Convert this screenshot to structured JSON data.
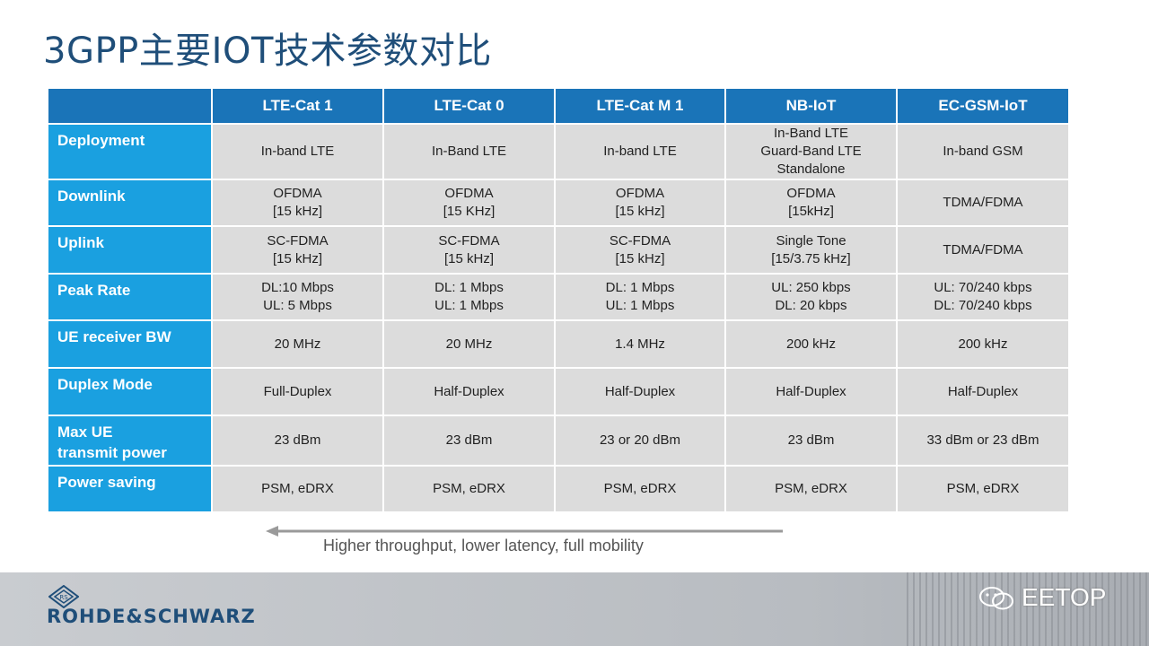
{
  "title": "3GPP主要IOT技术参数对比",
  "table": {
    "columns": [
      "LTE-Cat 1",
      "LTE-Cat 0",
      "LTE-Cat M 1",
      "NB-IoT",
      "EC-GSM-IoT"
    ],
    "rows": [
      {
        "label": [
          "Deployment"
        ],
        "height": 58,
        "cells": [
          [
            "In-band LTE"
          ],
          [
            "In-Band LTE"
          ],
          [
            "In-band LTE"
          ],
          [
            "In-Band LTE",
            "Guard-Band LTE",
            "Standalone"
          ],
          [
            "In-band GSM"
          ]
        ]
      },
      {
        "label": [
          "Downlink"
        ],
        "height": 52,
        "cells": [
          [
            "OFDMA",
            "[15 kHz]"
          ],
          [
            "OFDMA",
            "[15 KHz]"
          ],
          [
            "OFDMA",
            "[15 kHz]"
          ],
          [
            "OFDMA",
            "[15kHz]"
          ],
          [
            "TDMA/FDMA"
          ]
        ]
      },
      {
        "label": [
          "Uplink"
        ],
        "height": 53,
        "cells": [
          [
            "SC-FDMA",
            "[15 kHz]"
          ],
          [
            "SC-FDMA",
            "[15 kHz]"
          ],
          [
            "SC-FDMA",
            "[15 kHz]"
          ],
          [
            "Single Tone",
            "[15/3.75 kHz]"
          ],
          [
            "TDMA/FDMA"
          ]
        ]
      },
      {
        "label": [
          "Peak Rate"
        ],
        "height": 52,
        "cells": [
          [
            "DL:10 Mbps",
            "UL: 5 Mbps"
          ],
          [
            "DL: 1 Mbps",
            "UL: 1 Mbps"
          ],
          [
            "DL: 1 Mbps",
            "UL: 1 Mbps"
          ],
          [
            "UL: 250 kbps",
            "DL: 20 kbps"
          ],
          [
            "UL: 70/240 kbps",
            "DL: 70/240 kbps"
          ]
        ]
      },
      {
        "label": [
          "UE receiver BW"
        ],
        "height": 53,
        "cells": [
          [
            "20 MHz"
          ],
          [
            "20 MHz"
          ],
          [
            "1.4 MHz"
          ],
          [
            "200 kHz"
          ],
          [
            "200 kHz"
          ]
        ]
      },
      {
        "label": [
          "Duplex Mode"
        ],
        "height": 53,
        "cells": [
          [
            "Full-Duplex"
          ],
          [
            "Half-Duplex"
          ],
          [
            "Half-Duplex"
          ],
          [
            "Half-Duplex"
          ],
          [
            "Half-Duplex"
          ]
        ]
      },
      {
        "label": [
          "Max UE",
          "transmit power"
        ],
        "height": 56,
        "cells": [
          [
            "23 dBm"
          ],
          [
            "23 dBm"
          ],
          [
            "23 or 20 dBm"
          ],
          [
            "23 dBm"
          ],
          [
            "33 dBm or 23 dBm"
          ]
        ]
      },
      {
        "label": [
          "Power saving"
        ],
        "height": 52,
        "cells": [
          [
            "PSM, eDRX"
          ],
          [
            "PSM, eDRX"
          ],
          [
            "PSM, eDRX"
          ],
          [
            "PSM, eDRX"
          ],
          [
            "PSM, eDRX"
          ]
        ]
      }
    ]
  },
  "caption": "Higher throughput, lower latency, full mobility",
  "logo_text": "ROHDE&SCHWARZ",
  "watermark": "EETOP",
  "colors": {
    "header_bg": "#1a74b8",
    "row_header_bg": "#1aa0e0",
    "cell_bg": "#dcdcdc",
    "title": "#1f4e79"
  }
}
